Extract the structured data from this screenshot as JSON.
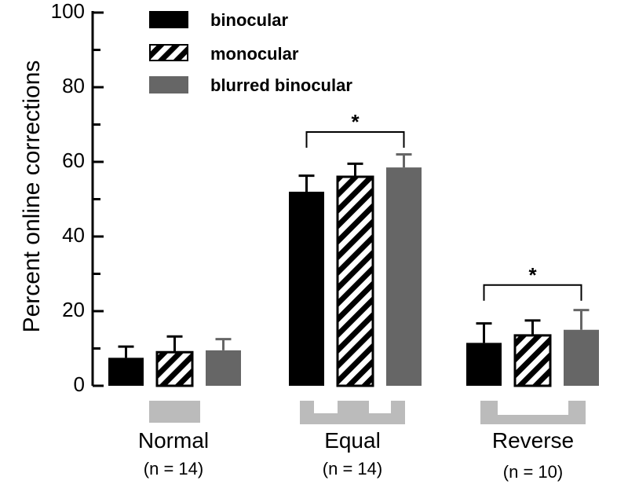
{
  "chart_data": {
    "type": "bar",
    "title": "",
    "ylabel": "Percent online corrections",
    "xlabel": "",
    "ylim": [
      0,
      100
    ],
    "yticks": [
      0,
      20,
      40,
      60,
      80,
      100
    ],
    "y_tick_labels": [
      "0",
      "20",
      "40",
      "60",
      "80",
      "100"
    ],
    "minor_step": 10,
    "categories": [
      "Normal",
      "Equal",
      "Reverse"
    ],
    "n_labels": [
      "(n = 14)",
      "(n = 14)",
      "(n = 10)"
    ],
    "legend_position": "top-left",
    "series": [
      {
        "name": "binocular",
        "style": "solid",
        "color": "#000000",
        "values": [
          7.5,
          52,
          11.5
        ],
        "errors": [
          3,
          4.3,
          5.2
        ]
      },
      {
        "name": "monocular",
        "style": "hatched",
        "color": "#000000",
        "values": [
          9,
          56,
          13.5
        ],
        "errors": [
          4.2,
          3.5,
          4.0
        ]
      },
      {
        "name": "blurred binocular",
        "style": "solid",
        "color": "#666666",
        "values": [
          9.5,
          58.5,
          15
        ],
        "errors": [
          3,
          3.5,
          5.3
        ]
      }
    ],
    "significance": [
      {
        "category": "Equal",
        "from_series": 0,
        "to_series": 2,
        "at": 68,
        "symbol": "*"
      },
      {
        "category": "Reverse",
        "from_series": 0,
        "to_series": 2,
        "at": 27,
        "symbol": "*"
      }
    ],
    "condition_icons": [
      "normal",
      "equal",
      "reverse"
    ],
    "icon_color": "#bbbbbb"
  }
}
